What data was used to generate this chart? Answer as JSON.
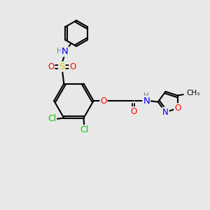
{
  "bg_color": "#e8e8e8",
  "bond_color": "#000000",
  "bond_width": 1.5,
  "atom_colors": {
    "C": "#000000",
    "H": "#708090",
    "N": "#0000ff",
    "O": "#ff0000",
    "S": "#cccc00",
    "Cl": "#00cc00"
  },
  "font_size": 8.5
}
